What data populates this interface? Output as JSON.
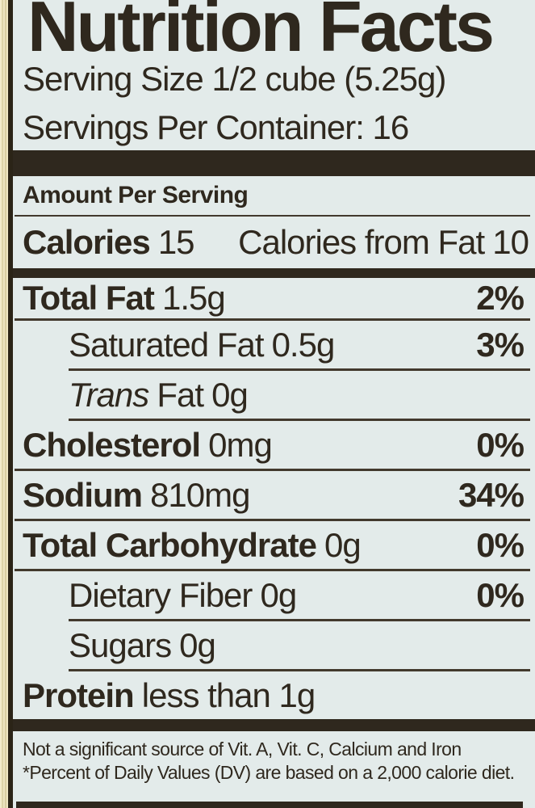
{
  "label": {
    "title": "Nutrition Facts",
    "serving_size": "Serving Size 1/2 cube (5.25g)",
    "servings_per_container": "Servings Per Container: 16",
    "amount_per_serving": "Amount Per Serving",
    "calories_label": "Calories",
    "calories_value": "15",
    "calories_from_fat_label": "Calories from Fat",
    "calories_from_fat_value": "10",
    "rows": [
      {
        "name": "Total Fat",
        "amount": "1.5g",
        "dv": "2%"
      },
      {
        "name": "Saturated Fat",
        "amount": "0.5g",
        "dv": "3%"
      },
      {
        "name_italic": "Trans",
        "name": "Fat",
        "amount": "0g",
        "dv": ""
      },
      {
        "name": "Cholesterol",
        "amount": "0mg",
        "dv": "0%"
      },
      {
        "name": "Sodium",
        "amount": "810mg",
        "dv": "34%"
      },
      {
        "name": "Total Carbohydrate",
        "amount": "0g",
        "dv": "0%"
      },
      {
        "name": "Dietary Fiber",
        "amount": "0g",
        "dv": "0%"
      },
      {
        "name": "Sugars",
        "amount": "0g",
        "dv": ""
      },
      {
        "name": "Protein",
        "amount": "less than 1g",
        "dv": ""
      }
    ],
    "footnote_line1": "Not a significant source of Vit. A, Vit. C, Calcium and Iron",
    "footnote_line2": "*Percent of Daily Values (DV) are based on a 2,000 calorie diet.",
    "colors": {
      "label_background": "#e3ebea",
      "ink": "#2f281e",
      "package_edge": "#e7deb6"
    }
  }
}
